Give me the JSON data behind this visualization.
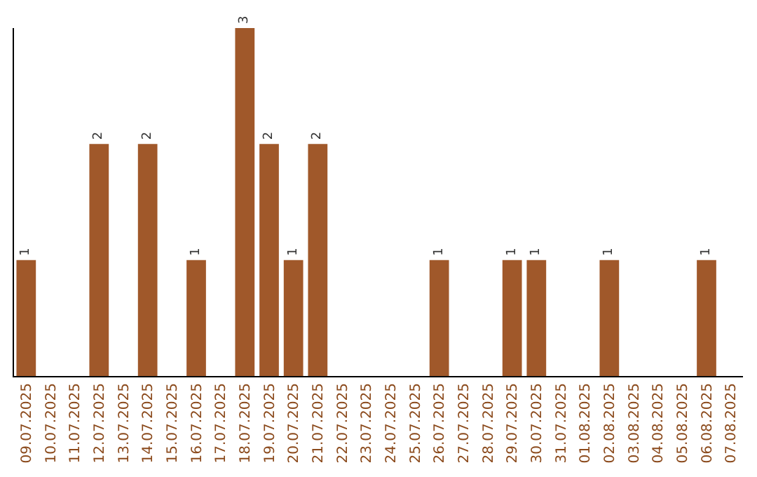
{
  "chart_data": {
    "type": "bar",
    "categories": [
      "09.07.2025",
      "10.07.2025",
      "11.07.2025",
      "12.07.2025",
      "13.07.2025",
      "14.07.2025",
      "15.07.2025",
      "16.07.2025",
      "17.07.2025",
      "18.07.2025",
      "19.07.2025",
      "20.07.2025",
      "21.07.2025",
      "22.07.2025",
      "23.07.2025",
      "24.07.2025",
      "25.07.2025",
      "26.07.2025",
      "27.07.2025",
      "28.07.2025",
      "29.07.2025",
      "30.07.2025",
      "31.07.2025",
      "01.08.2025",
      "02.08.2025",
      "03.08.2025",
      "04.08.2025",
      "05.08.2025",
      "06.08.2025",
      "07.08.2025"
    ],
    "values": [
      1,
      0,
      0,
      2,
      0,
      2,
      0,
      1,
      0,
      3,
      2,
      1,
      2,
      0,
      0,
      0,
      0,
      1,
      0,
      0,
      1,
      1,
      0,
      0,
      1,
      0,
      0,
      0,
      1,
      0
    ],
    "value_labels": [
      "1",
      null,
      null,
      "2",
      null,
      "2",
      null,
      "1",
      null,
      "3",
      "2",
      "1",
      "2",
      null,
      null,
      null,
      null,
      "1",
      null,
      null,
      "1",
      "1",
      null,
      null,
      "1",
      null,
      null,
      null,
      "1",
      null
    ],
    "color": "#a0582a",
    "ylim": [
      0,
      3
    ],
    "tick_labels": "x",
    "grid": false,
    "legend": false
  }
}
